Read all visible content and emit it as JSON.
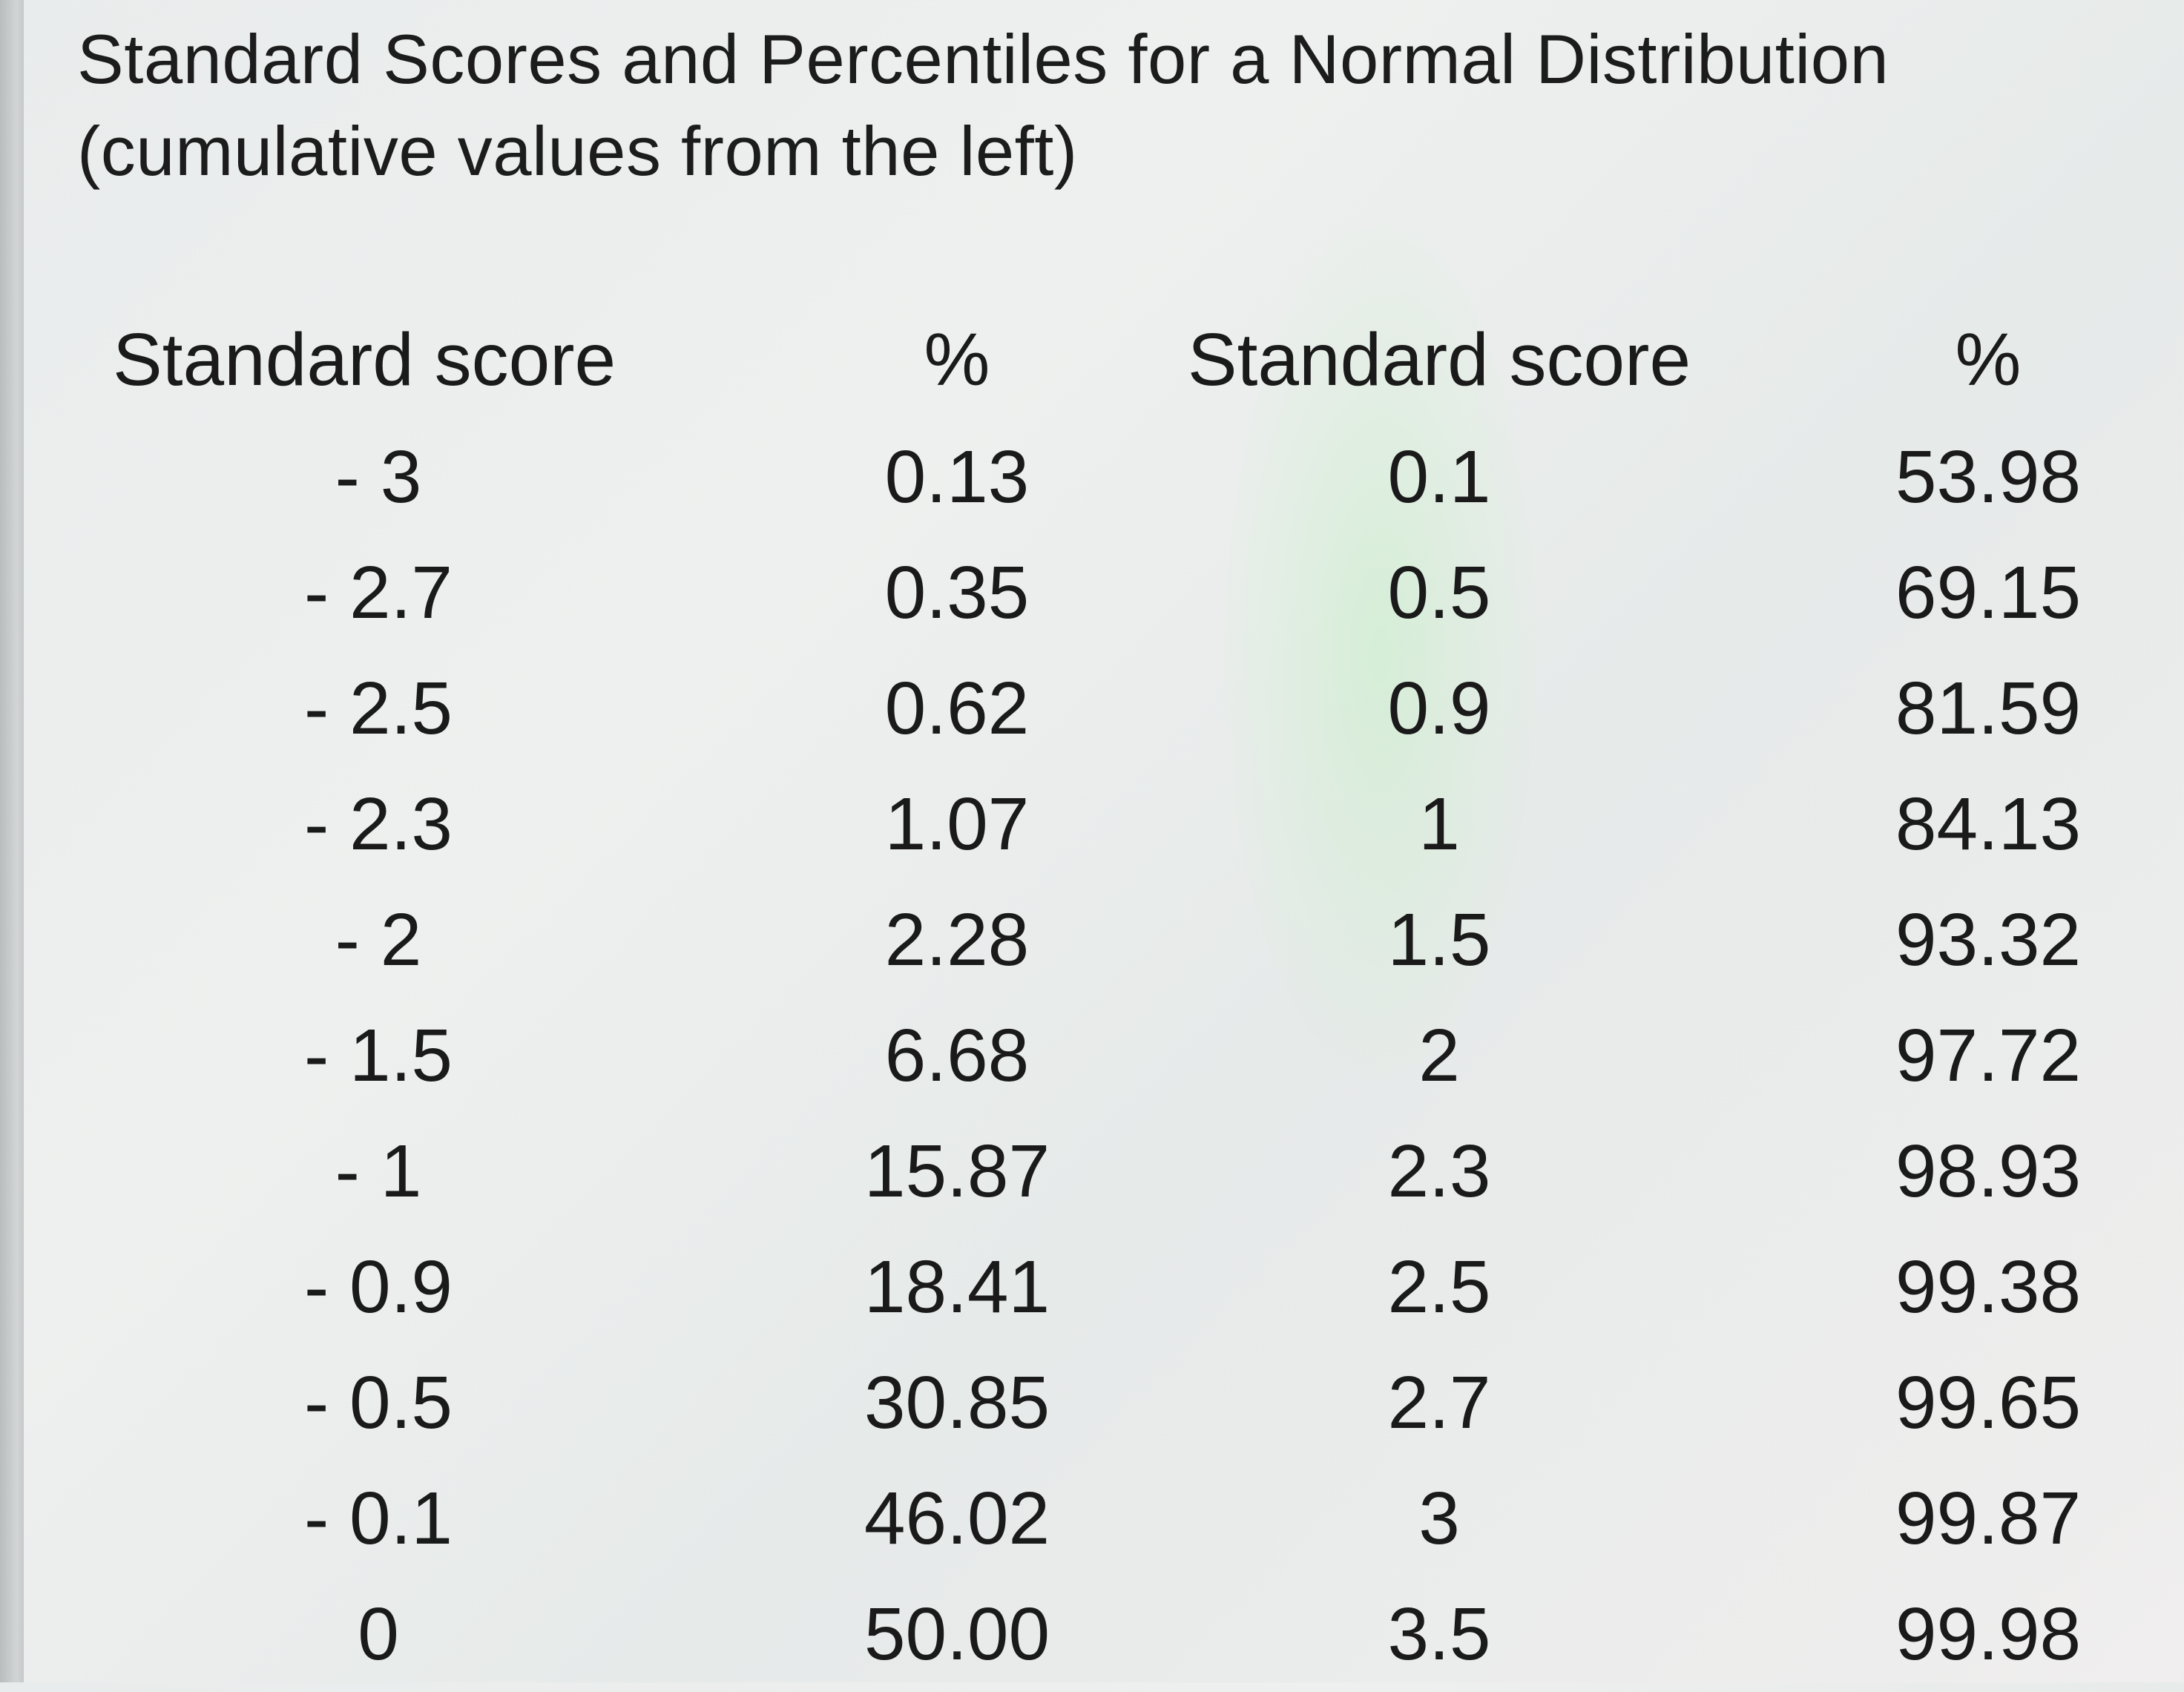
{
  "title": {
    "line1": "Standard Scores and Percentiles for a Normal Distribution",
    "line2": "(cumulative values from the left)"
  },
  "headers": {
    "col1": "Standard score",
    "col2": "%",
    "col3": "Standard score",
    "col4": "%"
  },
  "rows": [
    {
      "z1": "- 3",
      "p1": "0.13",
      "z2": "0.1",
      "p2": "53.98"
    },
    {
      "z1": "- 2.7",
      "p1": "0.35",
      "z2": "0.5",
      "p2": "69.15"
    },
    {
      "z1": "- 2.5",
      "p1": "0.62",
      "z2": "0.9",
      "p2": "81.59"
    },
    {
      "z1": "- 2.3",
      "p1": "1.07",
      "z2": "1",
      "p2": "84.13"
    },
    {
      "z1": "- 2",
      "p1": "2.28",
      "z2": "1.5",
      "p2": "93.32"
    },
    {
      "z1": "- 1.5",
      "p1": "6.68",
      "z2": "2",
      "p2": "97.72"
    },
    {
      "z1": "- 1",
      "p1": "15.87",
      "z2": "2.3",
      "p2": "98.93"
    },
    {
      "z1": "- 0.9",
      "p1": "18.41",
      "z2": "2.5",
      "p2": "99.38"
    },
    {
      "z1": "- 0.5",
      "p1": "30.85",
      "z2": "2.7",
      "p2": "99.65"
    },
    {
      "z1": "- 0.1",
      "p1": "46.02",
      "z2": "3",
      "p2": "99.87"
    },
    {
      "z1": "0",
      "p1": "50.00",
      "z2": "3.5",
      "p2": "99.98"
    }
  ]
}
